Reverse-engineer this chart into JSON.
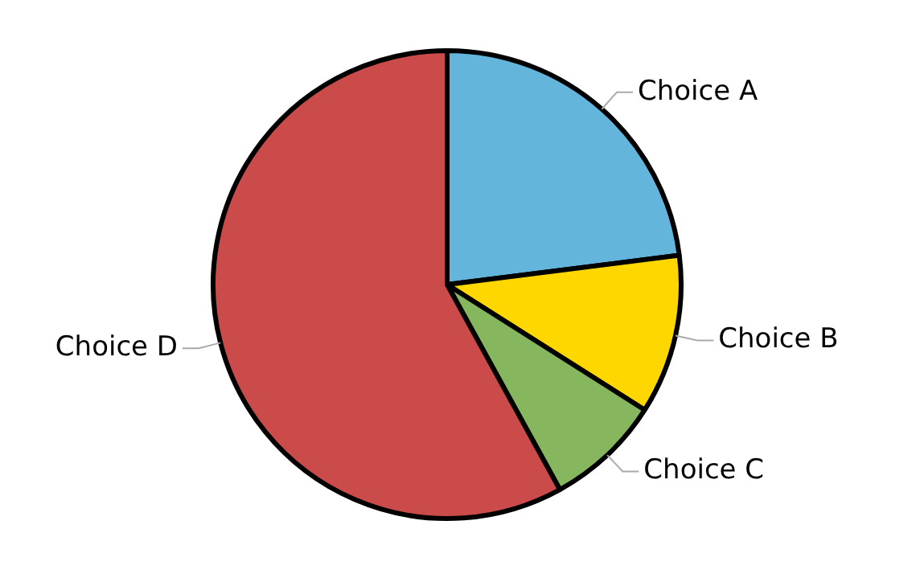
{
  "chart_data": {
    "type": "pie",
    "categories": [
      "Choice A",
      "Choice B",
      "Choice C",
      "Choice D"
    ],
    "values": [
      23,
      11,
      8,
      58
    ],
    "colors": [
      "#64b5dc",
      "#ffd700",
      "#86b65e",
      "#cb4a4a"
    ],
    "legend": false
  }
}
